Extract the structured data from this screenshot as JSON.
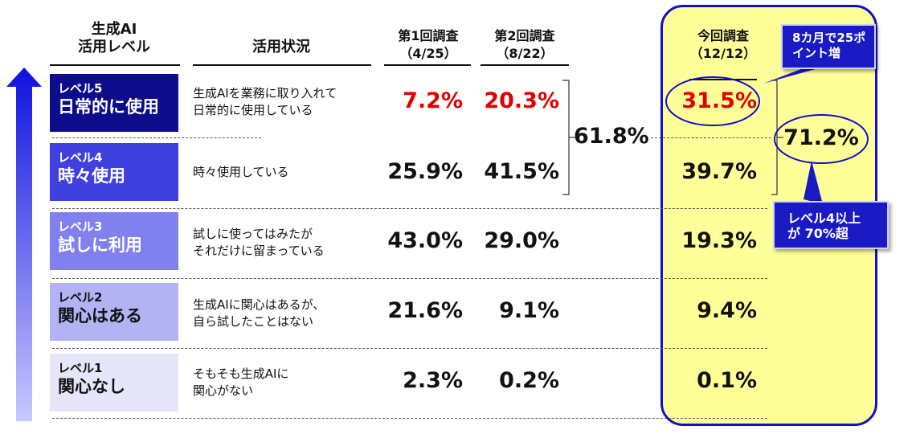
{
  "header": {
    "level_col": [
      "生成AI",
      "活用レベル"
    ],
    "status_col": "活用状況",
    "survey1": [
      "第1回調査",
      "（4/25）"
    ],
    "survey2": [
      "第2回調査",
      "（8/22）"
    ],
    "survey3": [
      "今回調査",
      "（12/12）"
    ]
  },
  "chart_data": {
    "type": "table",
    "columns": [
      "第1回調査（4/25）",
      "第2回調査（8/22）",
      "今回調査（12/12）"
    ],
    "rows": [
      {
        "level": "レベル5",
        "name": "日常的に使用",
        "status": [
          "生成AIを業務に取り入れて",
          "日常的に使用している"
        ],
        "values": [
          "7.2%",
          "20.3%",
          "31.5%"
        ]
      },
      {
        "level": "レベル4",
        "name": "時々使用",
        "status": [
          "時々使用している"
        ],
        "values": [
          "25.9%",
          "41.5%",
          "39.7%"
        ]
      },
      {
        "level": "レベル3",
        "name": "試しに利用",
        "status": [
          "試しに使ってはみたが",
          "それだけに留まっている"
        ],
        "values": [
          "43.0%",
          "29.0%",
          "19.3%"
        ]
      },
      {
        "level": "レベル2",
        "name": "関心はある",
        "status": [
          "生成AIに関心はあるが、",
          "自ら試したことはない"
        ],
        "values": [
          "21.6%",
          "9.1%",
          "9.4%"
        ]
      },
      {
        "level": "レベル1",
        "name": "関心なし",
        "status": [
          "そもそも生成AIに",
          "関心がない"
        ],
        "values": [
          "2.3%",
          "0.2%",
          "0.1%"
        ]
      }
    ],
    "highlight_red": [
      [
        0,
        0
      ],
      [
        0,
        1
      ],
      [
        0,
        2
      ]
    ],
    "sum_level4_5": {
      "survey2": "61.8%",
      "survey3": "71.2%"
    }
  },
  "callouts": {
    "top": [
      "8カ月で25ポ",
      "イント増"
    ],
    "bottom": [
      "レベル4以上",
      "が 70%超"
    ]
  },
  "colors": {
    "level5": "#0c0c8c",
    "level4": "#4040e0",
    "level3": "#8080ee",
    "level2": "#b3b3f3",
    "level1": "#e6e6fb",
    "red": "#e00000",
    "panel": "#ffff99",
    "panel_border": "#1010c8"
  }
}
